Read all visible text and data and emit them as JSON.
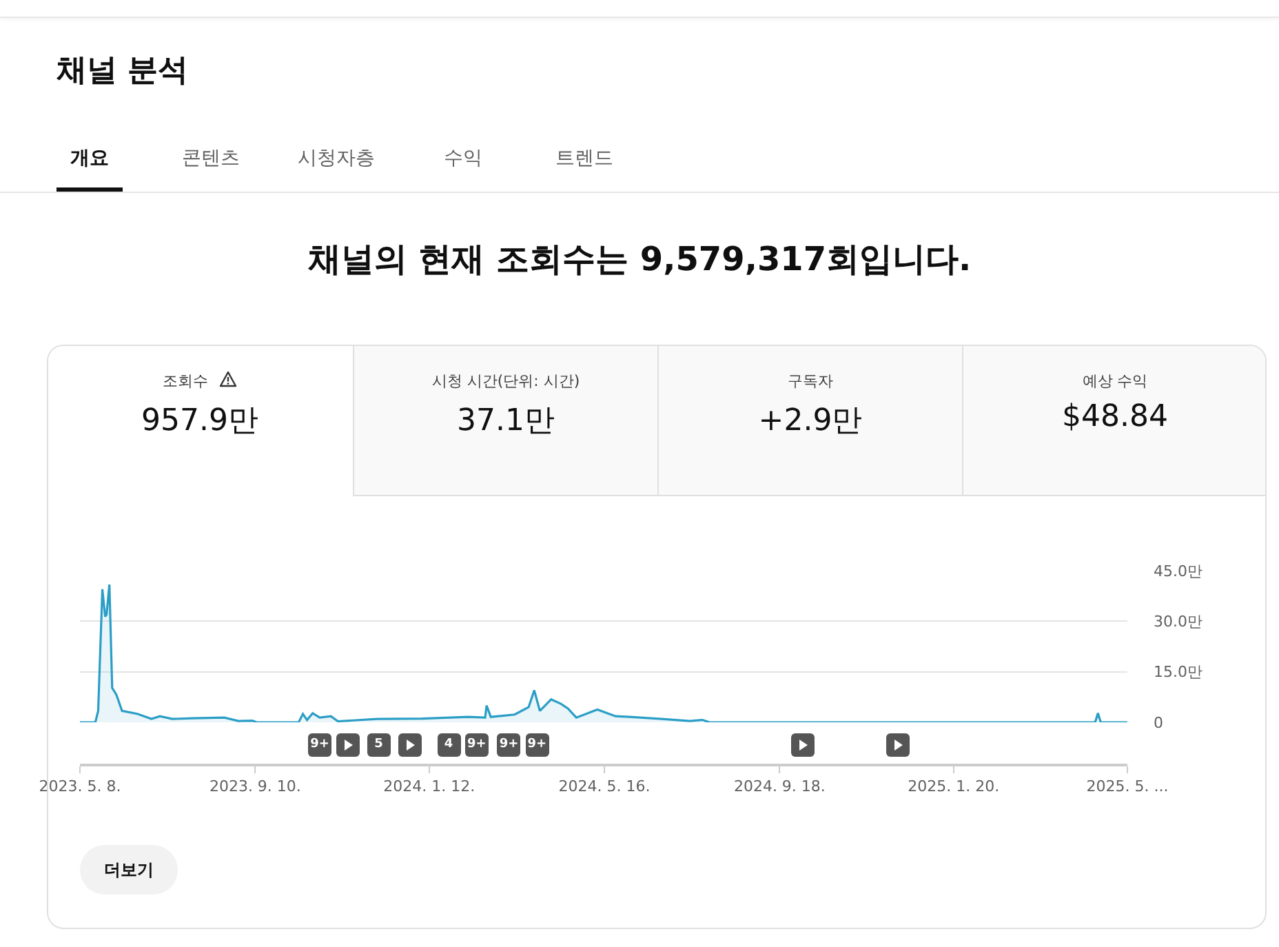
{
  "chart_data": {
    "type": "area",
    "title": "채널 분석",
    "subtitle": "채널의 현재 조회수는 9,579,317회입니다.",
    "annotations": [
      "개요",
      "콘텐츠",
      "시청자층",
      "수익",
      "트렌드",
      "조회수",
      "957.9만",
      "시청 시간(단위: 시간)",
      "37.1만",
      "구독자",
      "+2.9만",
      "예상 수익",
      "$48.84",
      "더보기",
      "9+",
      "5",
      "4",
      "9+",
      "9+",
      "9+"
    ],
    "x": [
      "2023-05-08",
      "2023-05-19",
      "2023-05-21",
      "2023-05-24",
      "2023-05-26",
      "2023-05-27",
      "2023-05-29",
      "2023-05-31",
      "2023-06-03",
      "2023-06-07",
      "2023-06-18",
      "2023-06-28",
      "2023-07-04",
      "2023-07-13",
      "2023-07-27",
      "2023-08-19",
      "2023-08-29",
      "2023-09-08",
      "2023-09-11",
      "2023-10-11",
      "2023-10-14",
      "2023-10-17",
      "2023-10-21",
      "2023-10-26",
      "2023-11-03",
      "2023-11-08",
      "2023-12-06",
      "2024-01-07",
      "2024-02-09",
      "2024-02-21",
      "2024-02-22",
      "2024-02-25",
      "2024-03-13",
      "2024-03-23",
      "2024-03-27",
      "2024-03-31",
      "2024-04-08",
      "2024-04-15",
      "2024-04-20",
      "2024-04-26",
      "2024-05-11",
      "2024-05-24",
      "2024-06-03",
      "2024-06-26",
      "2024-07-16",
      "2024-07-25",
      "2024-07-30",
      "2025-05-01",
      "2025-05-03",
      "2025-05-05",
      "2025-05-24"
    ],
    "series": [
      {
        "color": "#2b9ec6",
        "values": [
          0,
          0,
          3.4,
          39.5,
          31.4,
          32,
          40.9,
          10.2,
          8.2,
          3.4,
          2.5,
          1.0,
          1.8,
          1.0,
          1.2,
          1.4,
          0.4,
          0.5,
          0,
          0,
          2.5,
          0.7,
          2.7,
          1.4,
          1.8,
          0.3,
          1.0,
          1.1,
          1.6,
          1.4,
          5.0,
          1.6,
          2.3,
          4.5,
          9.5,
          3.4,
          6.8,
          5.5,
          4.1,
          1.4,
          3.8,
          1.8,
          1.6,
          1.0,
          0.4,
          0.7,
          0,
          0,
          2.7,
          0,
          0
        ]
      }
    ],
    "xlim": [
      "2023-05-08",
      "2025-05-24"
    ],
    "xticks": [
      {
        "value": "2023-05-08",
        "label": "2023. 5. 8."
      },
      {
        "value": "2023-09-10",
        "label": "2023. 9. 10."
      },
      {
        "value": "2024-01-12",
        "label": "2024. 1. 12."
      },
      {
        "value": "2024-05-16",
        "label": "2024. 5. 16."
      },
      {
        "value": "2024-09-18",
        "label": "2024. 9. 18."
      },
      {
        "value": "2025-01-20",
        "label": "2025. 1. 20."
      },
      {
        "value": "2025-05-24",
        "label": "2025. 5. ..."
      }
    ],
    "ylim": [
      0,
      45
    ],
    "yticks": [
      {
        "value": 0,
        "label": "0"
      },
      {
        "value": 15,
        "label": "15.0만"
      },
      {
        "value": 30,
        "label": "30.0만"
      },
      {
        "value": 45,
        "label": "45.0만"
      }
    ],
    "grid": "y"
  }
}
